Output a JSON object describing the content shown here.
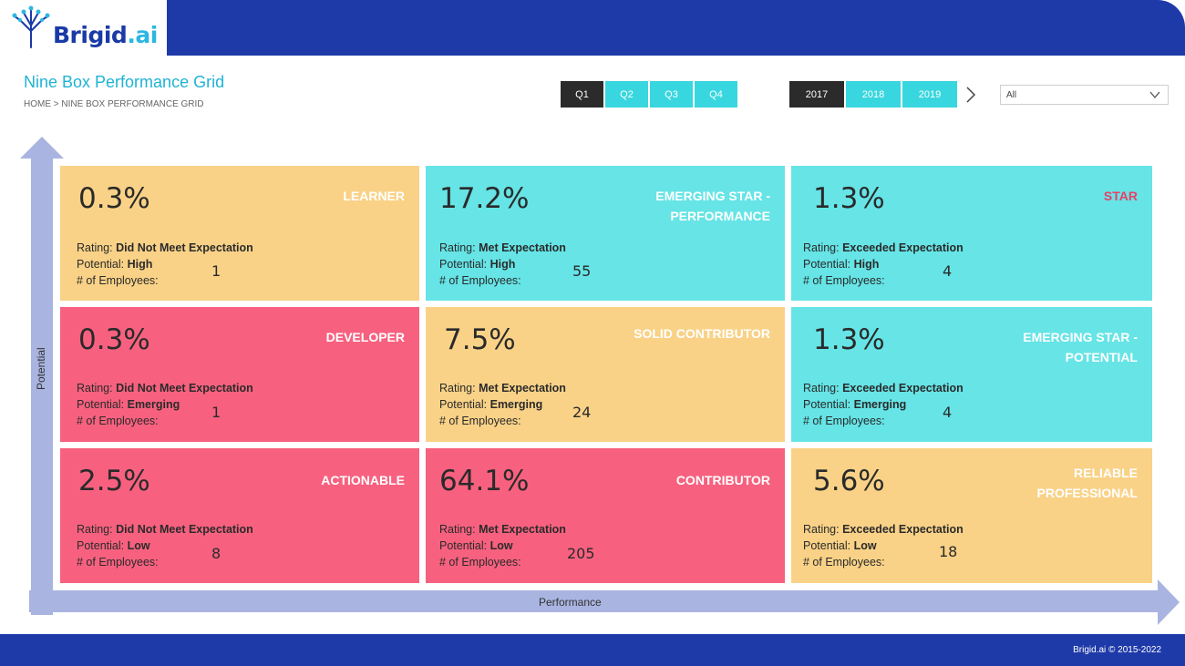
{
  "brand": {
    "name_part1": "Brigid",
    "name_part2": ".ai",
    "brand_color": "#1e3aa9",
    "accent_color": "#38d6de"
  },
  "header": {
    "title": "Nine Box Performance Grid",
    "breadcrumb": "HOME > NINE BOX PERFORMANCE GRID"
  },
  "quarters": {
    "items": [
      "Q1",
      "Q2",
      "Q3",
      "Q4"
    ],
    "selected": "Q1"
  },
  "years": {
    "items": [
      "2017",
      "2018",
      "2019"
    ],
    "selected": "2017"
  },
  "next_icon": "chevron-right-icon",
  "filter": {
    "value": "All",
    "icon": "chevron-down-icon"
  },
  "axes": {
    "y_label": "Potential",
    "x_label": "Performance"
  },
  "labels": {
    "rating": "Rating:",
    "potential": "Potential:",
    "employees": "# of Employees:"
  },
  "cells": {
    "learner": {
      "pct": "0.3%",
      "title": "LEARNER",
      "rating": "Did Not Meet Expectation",
      "potential": "High",
      "employees": "1",
      "color": "#f9d287"
    },
    "emerging_star_performance": {
      "pct": "17.2%",
      "title_line1": "EMERGING STAR -",
      "title_line2": "PERFORMANCE",
      "rating": "Met Expectation",
      "potential": "High",
      "employees": "55",
      "color": "#66e4e6"
    },
    "star": {
      "pct": "1.3%",
      "title": "STAR",
      "rating": "Exceeded Expectation",
      "potential": "High",
      "employees": "4",
      "color": "#66e4e6"
    },
    "developer": {
      "pct": "0.3%",
      "title": "DEVELOPER",
      "rating": "Did Not Meet Expectation",
      "potential": "Emerging",
      "employees": "1",
      "color": "#f7617f"
    },
    "solid_contributor": {
      "pct": "7.5%",
      "title": "SOLID CONTRIBUTOR",
      "rating": "Met Expectation",
      "potential": "Emerging",
      "employees": "24",
      "color": "#f9d287"
    },
    "emerging_star_potential": {
      "pct": "1.3%",
      "title_line1": "EMERGING STAR -",
      "title_line2": "POTENTIAL",
      "rating": "Exceeded Expectation",
      "potential": "Emerging",
      "employees": "4",
      "color": "#66e4e6"
    },
    "actionable": {
      "pct": "2.5%",
      "title": "ACTIONABLE",
      "rating": "Did Not Meet Expectation",
      "potential": "Low",
      "employees": "8",
      "color": "#f7617f"
    },
    "contributor": {
      "pct": "64.1%",
      "title": "CONTRIBUTOR",
      "rating": "Met Expectation",
      "potential": "Low",
      "employees": "205",
      "color": "#f7617f"
    },
    "reliable_professional": {
      "pct": "5.6%",
      "title_line1": "RELIABLE",
      "title_line2": "PROFESSIONAL",
      "rating": "Exceeded Expectation",
      "potential": "Low",
      "employees": "18",
      "color": "#f9d287"
    }
  },
  "footer": {
    "text": "Brigid.ai © 2015-2022"
  }
}
